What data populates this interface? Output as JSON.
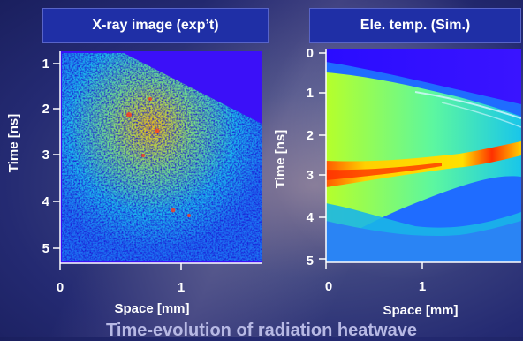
{
  "left_panel": {
    "title": "X-ray image  (exp’t)",
    "y_axis_label": "Time [ns]",
    "x_axis_label": "Space  [mm]",
    "y_ticks": [
      "1",
      "2",
      "3",
      "4",
      "5"
    ],
    "x_ticks": [
      "0",
      "1"
    ]
  },
  "right_panel": {
    "title": "Ele. temp. (Sim.)",
    "y_axis_label": "Time [ns]",
    "x_axis_label": "Space [mm]",
    "y_ticks": [
      "0",
      "1",
      "2",
      "3",
      "4",
      "5"
    ],
    "x_ticks": [
      "0",
      "1"
    ]
  },
  "caption": "Time-evolution of radiation heatwave",
  "colors": {
    "title_box": "#1f2fa6",
    "background_low": "#3400ff",
    "heat_mid": "#00c8ff",
    "heat_high": "#ffe000",
    "heat_peak": "#ff2a00"
  }
}
